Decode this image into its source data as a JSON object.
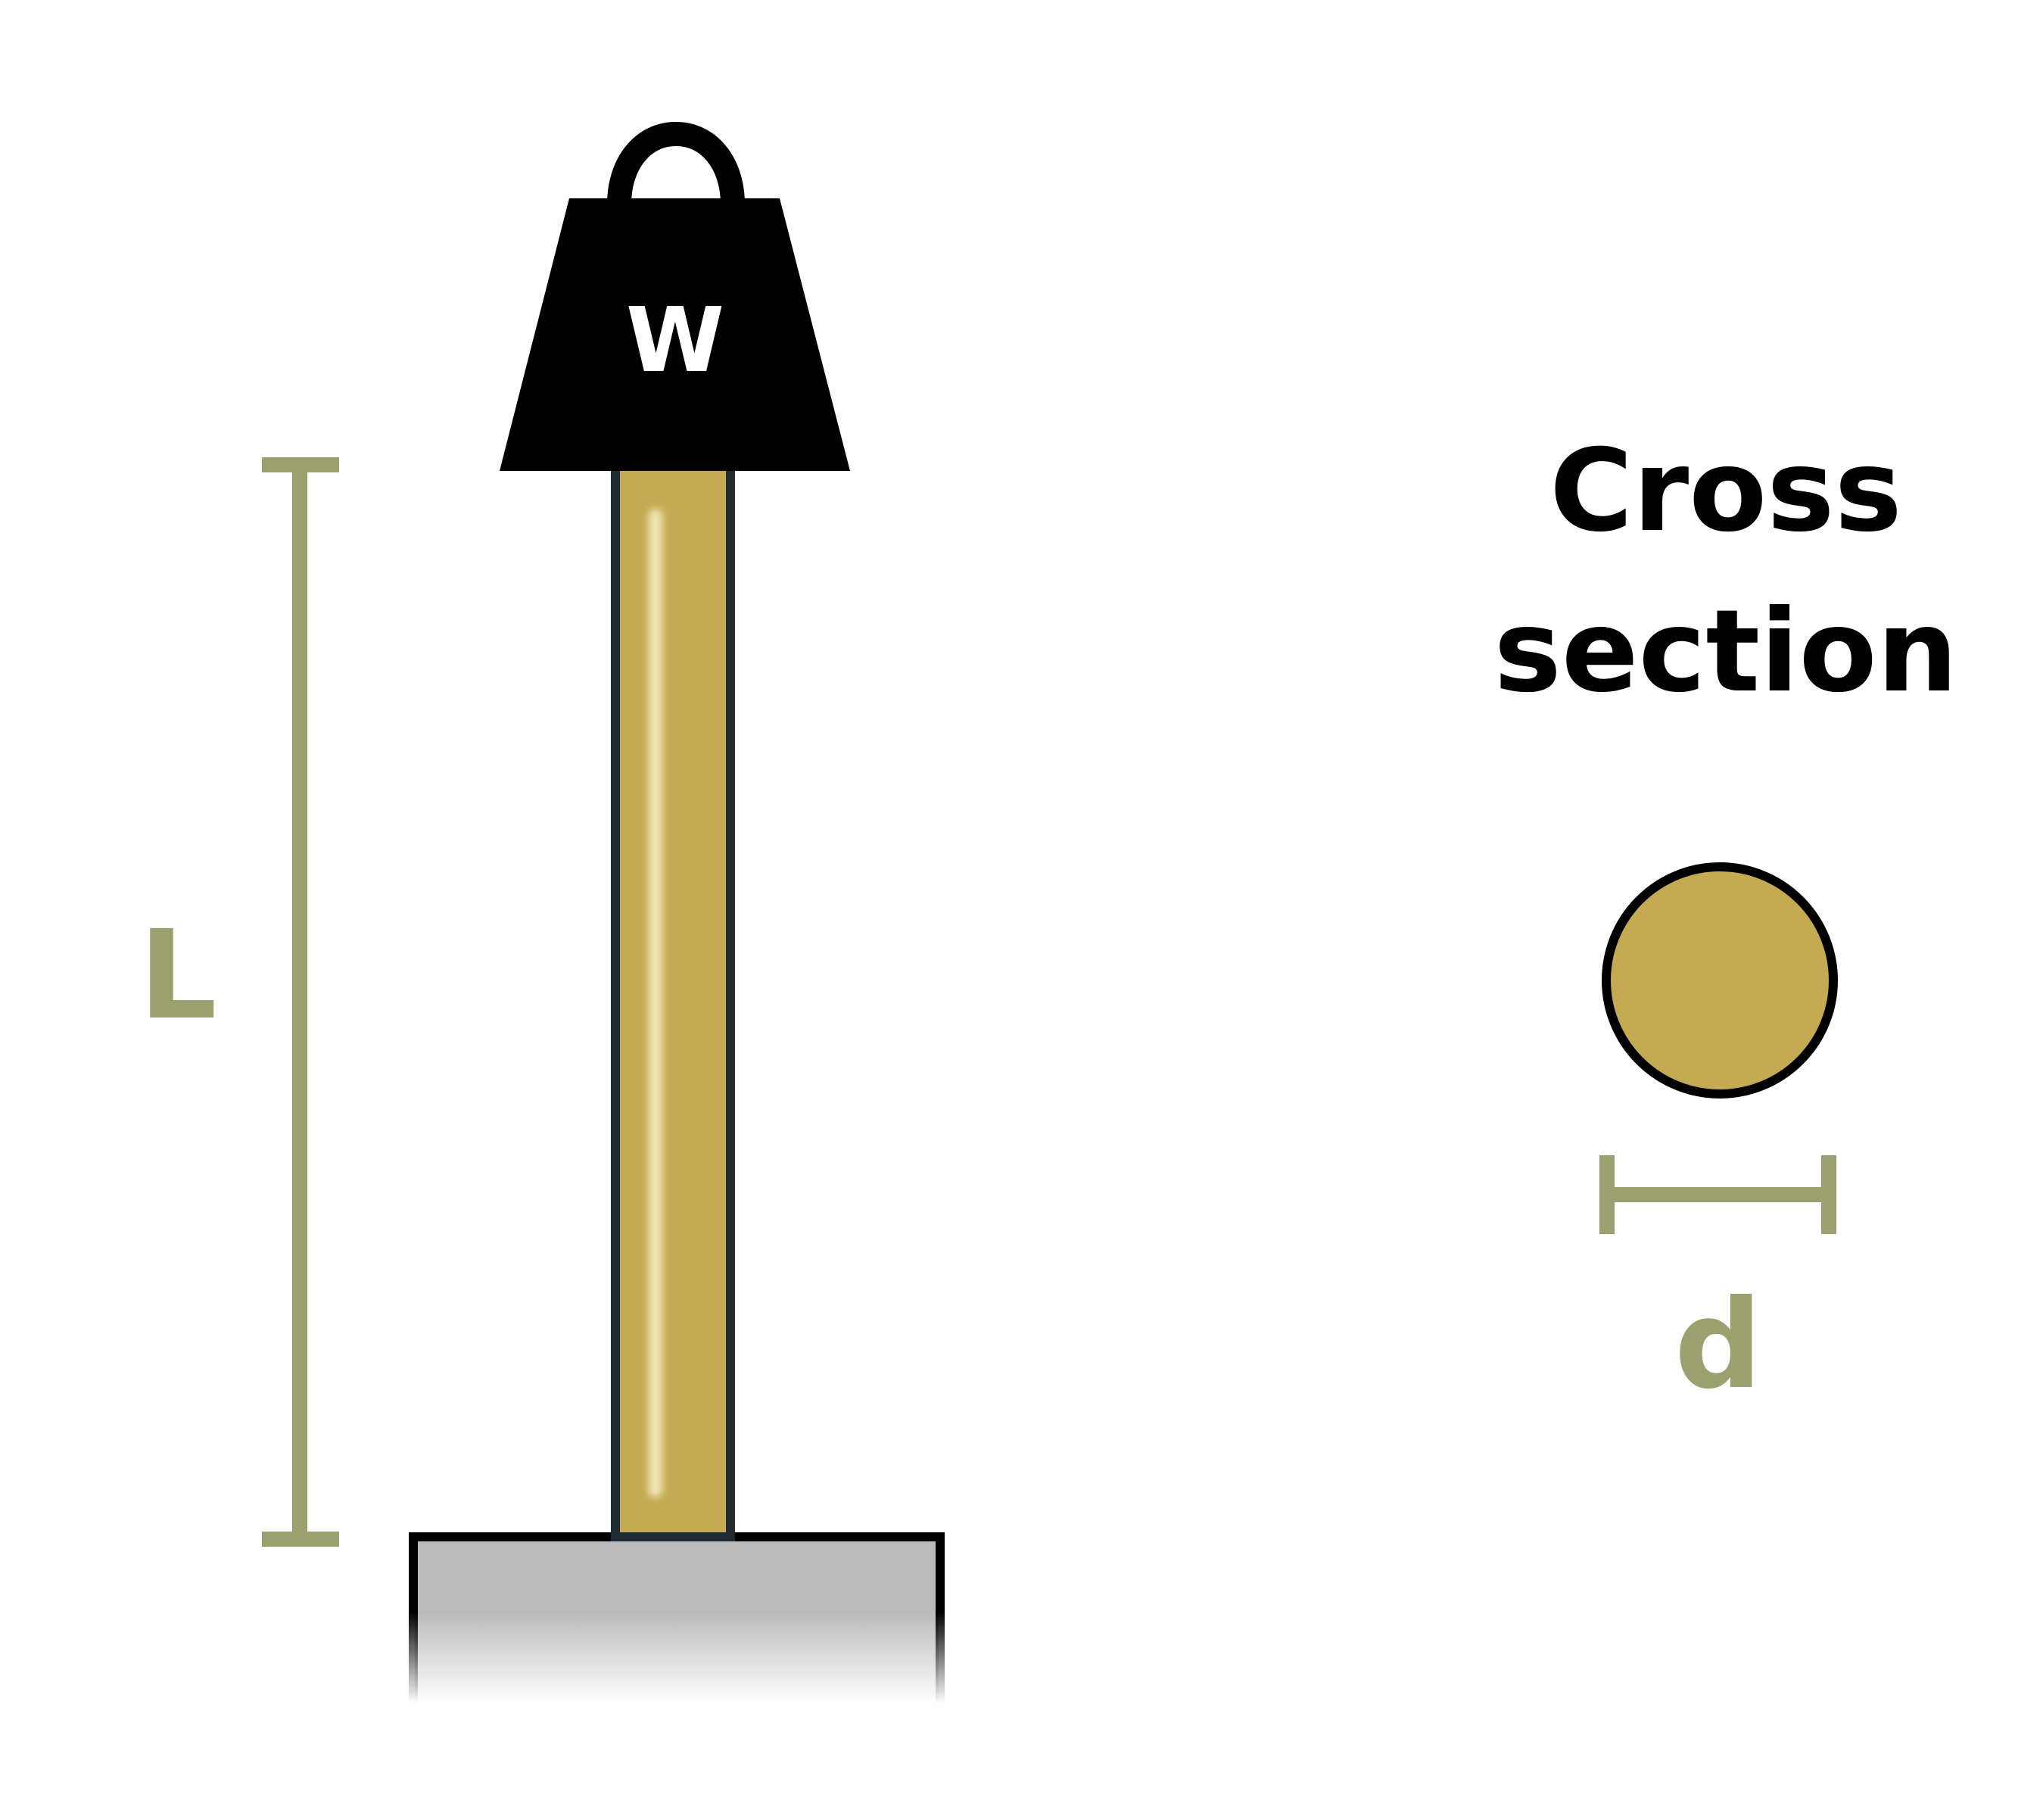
{
  "weight_label": "W",
  "length_label": "L",
  "diameter_label": "d",
  "cross_section_title": [
    "Cross",
    "section"
  ],
  "colors": {
    "rod_fill": "#C4AA52",
    "rod_highlight": "#F0E6B8",
    "rod_outline": "#1F2A33",
    "weight_fill": "#000000",
    "weight_text": "#FFFFFF",
    "dimension": "#9BA06E",
    "base_fill": "#BBBBBB",
    "base_outline": "#000000",
    "title_text": "#000000"
  }
}
